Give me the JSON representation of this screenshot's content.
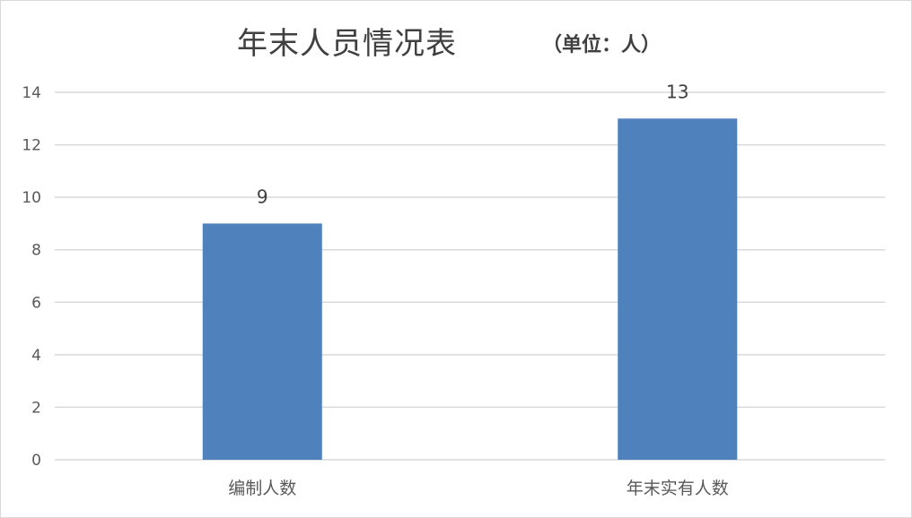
{
  "chart_data": {
    "type": "bar",
    "title": "年末人员情况表",
    "subtitle": "（单位：人）",
    "categories": [
      "编制人数",
      "年末实有人数"
    ],
    "values": [
      9,
      13
    ],
    "data_labels": [
      "9",
      "13"
    ],
    "ylim": [
      0,
      14
    ],
    "yticks": [
      "0",
      "2",
      "4",
      "6",
      "8",
      "10",
      "12",
      "14"
    ],
    "grid": true,
    "legend": "none",
    "bar_color": "#4f81bd",
    "grid_color": "#d9d9d9"
  }
}
